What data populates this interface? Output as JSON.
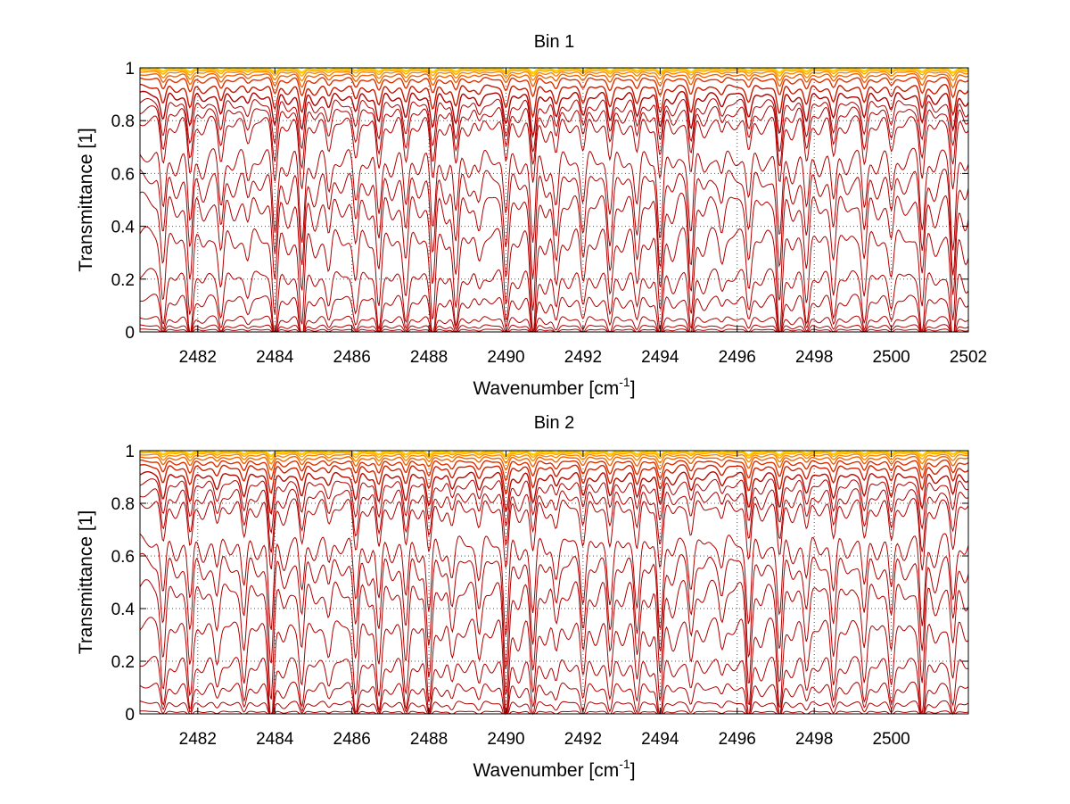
{
  "chart_data": [
    {
      "type": "line",
      "title": "Bin 1",
      "xlabel_base": "Wavenumber [cm",
      "xlabel_sup": "-1",
      "xlabel_close": "]",
      "ylabel": "Transmittance [1]",
      "xlim": [
        2480.5,
        2502
      ],
      "ylim": [
        0,
        1
      ],
      "grid": true,
      "xticks": [
        "2482",
        "2484",
        "2486",
        "2488",
        "2490",
        "2492",
        "2494",
        "2496",
        "2498",
        "2500",
        "2502"
      ],
      "yticks": [
        "0",
        "0.2",
        "0.4",
        "0.6",
        "0.8",
        "1"
      ],
      "series_description": "Family of transmittance spectra, one per level; red curves at lower transmittance, orange/yellow curves saturate near 1",
      "baseline_levels": [
        0.0,
        0.01,
        0.025,
        0.055,
        0.13,
        0.22,
        0.37,
        0.5,
        0.59,
        0.67,
        0.8,
        0.84,
        0.87,
        0.9,
        0.93,
        0.96,
        0.975,
        0.985,
        0.992,
        0.996,
        0.998
      ],
      "absorption_line_centers": [
        2481.1,
        2481.8,
        2482.6,
        2483.3,
        2484.0,
        2484.7,
        2485.4,
        2486.1,
        2486.7,
        2487.4,
        2488.1,
        2488.7,
        2489.3,
        2490.0,
        2490.7,
        2491.3,
        2492.0,
        2492.7,
        2493.4,
        2494.0,
        2494.8,
        2495.6,
        2496.3,
        2497.1,
        2497.8,
        2498.5,
        2499.3,
        2500.0,
        2500.8,
        2501.6
      ]
    },
    {
      "type": "line",
      "title": "Bin 2",
      "xlabel_base": "Wavenumber [cm",
      "xlabel_sup": "-1",
      "xlabel_close": "]",
      "ylabel": "Transmittance [1]",
      "xlim": [
        2480.5,
        2502
      ],
      "ylim": [
        0,
        1
      ],
      "grid": true,
      "xticks": [
        "2482",
        "2484",
        "2486",
        "2488",
        "2490",
        "2492",
        "2494",
        "2496",
        "2498",
        "2500"
      ],
      "yticks": [
        "0",
        "0.2",
        "0.4",
        "0.6",
        "0.8",
        "1"
      ],
      "series_description": "Family of transmittance spectra, one per level; red curves at lower transmittance, orange/yellow curves saturate near 1",
      "baseline_levels": [
        0.0,
        0.01,
        0.045,
        0.11,
        0.2,
        0.34,
        0.48,
        0.58,
        0.66,
        0.8,
        0.84,
        0.88,
        0.91,
        0.94,
        0.96,
        0.975,
        0.985,
        0.992,
        0.996,
        0.998
      ],
      "absorption_line_centers": [
        2481.1,
        2481.8,
        2482.5,
        2483.2,
        2483.9,
        2484.7,
        2485.4,
        2486.1,
        2486.7,
        2487.4,
        2488.0,
        2488.6,
        2489.3,
        2490.0,
        2490.7,
        2491.3,
        2492.0,
        2492.7,
        2493.4,
        2494.0,
        2494.8,
        2495.6,
        2496.3,
        2497.1,
        2497.8,
        2498.5,
        2499.3,
        2500.0,
        2500.8,
        2501.6
      ]
    }
  ],
  "colors": {
    "low_curve": "#b00000",
    "mid_curve": "#e03000",
    "high_curve": "#ff9900",
    "top_curve": "#ffd400",
    "top_accent": "#00b0c0"
  }
}
